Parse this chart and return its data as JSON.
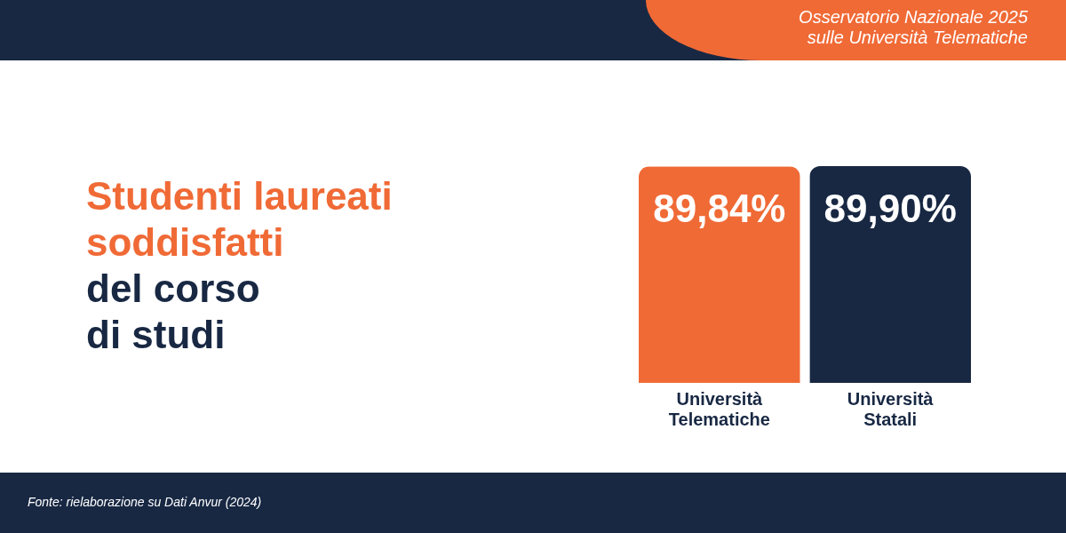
{
  "chart_data": {
    "type": "bar",
    "title": "Studenti laureati soddisfatti",
    "subtitle": "del corso di studi",
    "categories": [
      "Università Telematiche",
      "Università Statali"
    ],
    "values": [
      89.84,
      89.9
    ],
    "colors": [
      "#f06a36",
      "#182843"
    ],
    "value_labels": [
      "89,84%",
      "89,90%"
    ],
    "annotations": [
      "Osservatorio Nazionale 2025 sulle Università Telematiche",
      "Fonte: rielaborazione su Dati Anvur (2024)"
    ]
  }
}
